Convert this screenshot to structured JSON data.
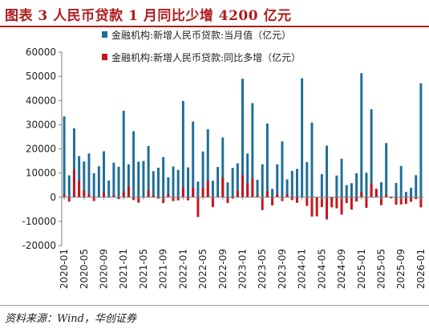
{
  "header": {
    "title": "图表 3   人民币贷款 1 月同比少增 4200 亿元"
  },
  "footer": {
    "source": "资料来源：Wind，华创证券"
  },
  "chart_data": {
    "type": "bar",
    "title": "图表 3   人民币贷款 1 月同比少增 4200 亿元",
    "xlabel": "",
    "ylabel": "",
    "ylim": [
      -20000,
      60000
    ],
    "yticks": [
      -20000,
      -10000,
      0,
      10000,
      20000,
      30000,
      40000,
      50000,
      60000
    ],
    "grid": false,
    "legend_position": "top-right",
    "tick_labels": [
      "2020-01",
      "2020-05",
      "2020-09",
      "2021-01",
      "2021-05",
      "2021-09",
      "2022-01",
      "2022-05",
      "2022-09",
      "2023-01",
      "2023-05",
      "2023-09",
      "2024-01",
      "2024-05",
      "2024-09",
      "2025-01",
      "2025-05",
      "2025-09",
      "2026-01"
    ],
    "colors": {
      "series1": "#1f6e99",
      "series2": "#c4161c"
    },
    "categories": [
      "2020-01",
      "2020-02",
      "2020-03",
      "2020-04",
      "2020-05",
      "2020-06",
      "2020-07",
      "2020-08",
      "2020-09",
      "2020-10",
      "2020-11",
      "2020-12",
      "2021-01",
      "2021-02",
      "2021-03",
      "2021-04",
      "2021-05",
      "2021-06",
      "2021-07",
      "2021-08",
      "2021-09",
      "2021-10",
      "2021-11",
      "2021-12",
      "2022-01",
      "2022-02",
      "2022-03",
      "2022-04",
      "2022-05",
      "2022-06",
      "2022-07",
      "2022-08",
      "2022-09",
      "2022-10",
      "2022-11",
      "2022-12",
      "2023-01",
      "2023-02",
      "2023-03",
      "2023-04",
      "2023-05",
      "2023-06",
      "2023-07",
      "2023-08",
      "2023-09",
      "2023-10",
      "2023-11",
      "2023-12",
      "2024-01",
      "2024-02",
      "2024-03",
      "2024-04",
      "2024-05",
      "2024-06",
      "2024-07",
      "2024-08",
      "2024-09",
      "2024-10",
      "2024-11",
      "2024-12",
      "2025-01",
      "2025-02",
      "2025-03",
      "2025-04",
      "2025-05",
      "2025-06",
      "2025-07",
      "2025-08",
      "2025-09",
      "2025-10",
      "2025-11",
      "2025-12",
      "2026-01"
    ],
    "series": [
      {
        "name": "金融机构:新增人民币贷款:当月值（亿元）",
        "values": [
          33400,
          9057,
          28500,
          17000,
          14800,
          18100,
          9927,
          12800,
          19000,
          6898,
          14300,
          12600,
          35800,
          13600,
          27300,
          14700,
          15000,
          21200,
          10800,
          12200,
          16600,
          8262,
          12700,
          11300,
          39800,
          12300,
          31300,
          6454,
          18900,
          28100,
          6790,
          12500,
          24700,
          6152,
          12100,
          14000,
          49000,
          18100,
          38900,
          7188,
          13600,
          30500,
          3459,
          13600,
          23100,
          7384,
          10900,
          11700,
          49200,
          14500,
          30900,
          -730,
          9500,
          21300,
          -770,
          9000,
          15900,
          5000,
          5800,
          9900,
          51300,
          10100,
          36400,
          2800,
          6200,
          22400,
          -500,
          5900,
          12900,
          2200,
          3900,
          9100,
          47100
        ]
      },
      {
        "name": "金融机构:新增人民币贷款:同比多增（亿元）",
        "values": [
          1100,
          -1800,
          11600,
          6800,
          2800,
          1200,
          -1600,
          -200,
          2100,
          -150,
          900,
          -800,
          2400,
          4500,
          -1200,
          -2300,
          200,
          3100,
          850,
          -600,
          -2400,
          1400,
          -1600,
          -1300,
          4000,
          -1300,
          4000,
          -8200,
          3900,
          6900,
          -4100,
          400,
          8100,
          -2400,
          -600,
          2700,
          9200,
          5800,
          7600,
          800,
          -5300,
          2400,
          -3400,
          1100,
          -1600,
          1200,
          -1200,
          -2300,
          200,
          -3600,
          -8000,
          -7900,
          -4100,
          -9200,
          -4200,
          -4600,
          -7200,
          -2400,
          -5100,
          -1800,
          2100,
          -4400,
          5500,
          3500,
          -3300,
          1100,
          270,
          -3100,
          -3000,
          -2800,
          -1900,
          -800,
          -4200
        ]
      }
    ]
  }
}
